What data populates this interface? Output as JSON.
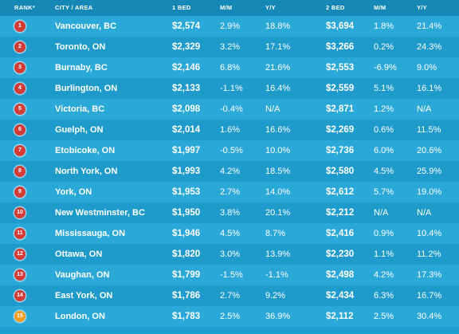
{
  "colors": {
    "background": "#1a9fd0",
    "header_bg": "#1588b6",
    "row_odd": "#2aa8d8",
    "row_even": "#1e9bcb",
    "badge_red": "#d23b36",
    "badge_orange": "#f39c1f"
  },
  "headers": {
    "rank": "RANK*",
    "city": "CITY / AREA",
    "bed1": "1 BED",
    "bed1_mm": "M/M",
    "bed1_yy": "Y/Y",
    "bed2": "2 BED",
    "bed2_mm": "M/M",
    "bed2_yy": "Y/Y"
  },
  "rows": [
    {
      "rank": "1",
      "city": "Vancouver, BC",
      "bed1": "$2,574",
      "bed1_mm": "2.9%",
      "bed1_yy": "18.8%",
      "bed2": "$3,694",
      "bed2_mm": "1.8%",
      "bed2_yy": "21.4%",
      "badge_color": "#d23b36"
    },
    {
      "rank": "2",
      "city": "Toronto, ON",
      "bed1": "$2,329",
      "bed1_mm": "3.2%",
      "bed1_yy": "17.1%",
      "bed2": "$3,266",
      "bed2_mm": "0.2%",
      "bed2_yy": "24.3%",
      "badge_color": "#d23b36"
    },
    {
      "rank": "3",
      "city": "Burnaby, BC",
      "bed1": "$2,146",
      "bed1_mm": "6.8%",
      "bed1_yy": "21.6%",
      "bed2": "$2,553",
      "bed2_mm": "-6.9%",
      "bed2_yy": "9.0%",
      "badge_color": "#d23b36"
    },
    {
      "rank": "4",
      "city": "Burlington, ON",
      "bed1": "$2,133",
      "bed1_mm": "-1.1%",
      "bed1_yy": "16.4%",
      "bed2": "$2,559",
      "bed2_mm": "5.1%",
      "bed2_yy": "16.1%",
      "badge_color": "#d23b36"
    },
    {
      "rank": "5",
      "city": "Victoria, BC",
      "bed1": "$2,098",
      "bed1_mm": "-0.4%",
      "bed1_yy": "N/A",
      "bed2": "$2,871",
      "bed2_mm": "1.2%",
      "bed2_yy": "N/A",
      "badge_color": "#d23b36"
    },
    {
      "rank": "6",
      "city": "Guelph, ON",
      "bed1": "$2,014",
      "bed1_mm": "1.6%",
      "bed1_yy": "16.6%",
      "bed2": "$2,269",
      "bed2_mm": "0.6%",
      "bed2_yy": "11.5%",
      "badge_color": "#d23b36"
    },
    {
      "rank": "7",
      "city": "Etobicoke, ON",
      "bed1": "$1,997",
      "bed1_mm": "-0.5%",
      "bed1_yy": "10.0%",
      "bed2": "$2,736",
      "bed2_mm": "6.0%",
      "bed2_yy": "20.6%",
      "badge_color": "#d23b36"
    },
    {
      "rank": "8",
      "city": "North York, ON",
      "bed1": "$1,993",
      "bed1_mm": "4.2%",
      "bed1_yy": "18.5%",
      "bed2": "$2,580",
      "bed2_mm": "4.5%",
      "bed2_yy": "25.9%",
      "badge_color": "#d23b36"
    },
    {
      "rank": "9",
      "city": "York, ON",
      "bed1": "$1,953",
      "bed1_mm": "2.7%",
      "bed1_yy": "14.0%",
      "bed2": "$2,612",
      "bed2_mm": "5.7%",
      "bed2_yy": "19.0%",
      "badge_color": "#d23b36"
    },
    {
      "rank": "10",
      "city": "New Westminster, BC",
      "bed1": "$1,950",
      "bed1_mm": "3.8%",
      "bed1_yy": "20.1%",
      "bed2": "$2,212",
      "bed2_mm": "N/A",
      "bed2_yy": "N/A",
      "badge_color": "#d23b36"
    },
    {
      "rank": "11",
      "city": "Mississauga, ON",
      "bed1": "$1,946",
      "bed1_mm": "4.5%",
      "bed1_yy": "8.7%",
      "bed2": "$2,416",
      "bed2_mm": "0.9%",
      "bed2_yy": "10.4%",
      "badge_color": "#d23b36"
    },
    {
      "rank": "12",
      "city": "Ottawa, ON",
      "bed1": "$1,820",
      "bed1_mm": "3.0%",
      "bed1_yy": "13.9%",
      "bed2": "$2,230",
      "bed2_mm": "1.1%",
      "bed2_yy": "11.2%",
      "badge_color": "#d23b36"
    },
    {
      "rank": "13",
      "city": "Vaughan, ON",
      "bed1": "$1,799",
      "bed1_mm": "-1.5%",
      "bed1_yy": "-1.1%",
      "bed2": "$2,498",
      "bed2_mm": "4.2%",
      "bed2_yy": "17.3%",
      "badge_color": "#d23b36"
    },
    {
      "rank": "14",
      "city": "East York, ON",
      "bed1": "$1,786",
      "bed1_mm": "2.7%",
      "bed1_yy": "9.2%",
      "bed2": "$2,434",
      "bed2_mm": "6.3%",
      "bed2_yy": "16.7%",
      "badge_color": "#d23b36"
    },
    {
      "rank": "15",
      "city": "London, ON",
      "bed1": "$1,783",
      "bed1_mm": "2.5%",
      "bed1_yy": "36.9%",
      "bed2": "$2,112",
      "bed2_mm": "2.5%",
      "bed2_yy": "30.4%",
      "badge_color": "#f39c1f"
    }
  ]
}
